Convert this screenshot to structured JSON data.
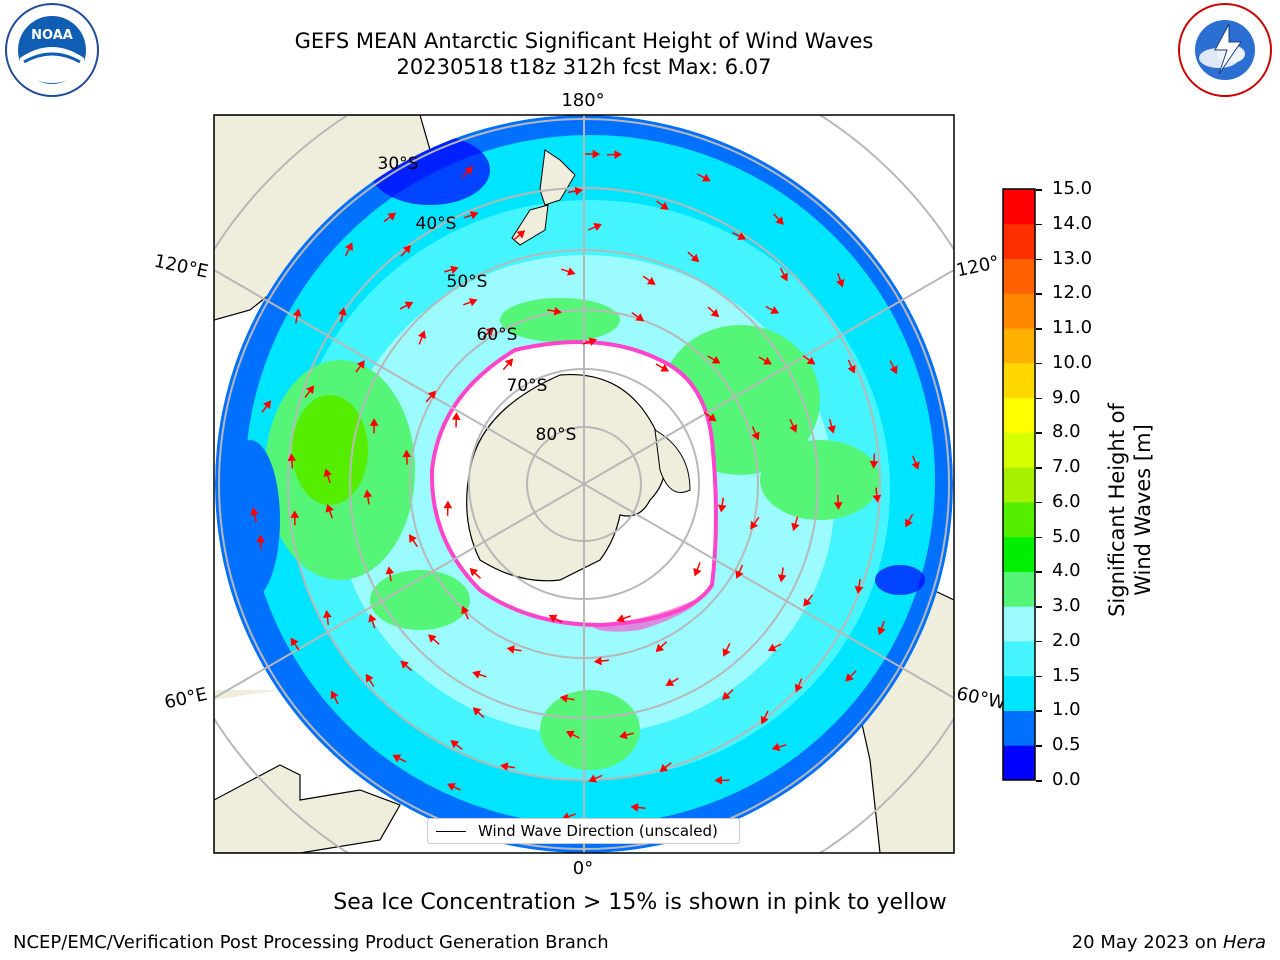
{
  "title": {
    "line1": "GEFS MEAN Antarctic Significant Height of Wind Waves",
    "line2": "20230518 t18z 312h fcst   Max: 6.07"
  },
  "logos": {
    "left": "NOAA",
    "left_ring_text": "NATIONAL OCEANIC AND ATMOSPHERIC ADMINISTRATION · U.S. DEPARTMENT OF COMMERCE",
    "right_ring_text": "NATIONAL WEATHER SERVICE"
  },
  "map": {
    "longitude_labels": {
      "top": "180°",
      "bottom": "0°",
      "left_upper": "120°E",
      "left_lower": "60°E",
      "right_upper": "120°",
      "right_lower": "60°W"
    },
    "latitude_labels": [
      "30°S",
      "40°S",
      "50°S",
      "60°S",
      "70°S",
      "80°S"
    ],
    "legend_label": "Wind Wave Direction (unscaled)"
  },
  "colorbar": {
    "label": "Significant Height of Wind Waves [m]",
    "ticks": [
      "15.0",
      "14.0",
      "13.0",
      "12.0",
      "11.0",
      "10.0",
      "9.0",
      "8.0",
      "7.0",
      "6.0",
      "5.0",
      "4.0",
      "3.0",
      "2.0",
      "1.5",
      "1.0",
      "0.5",
      "0.0"
    ],
    "colors": [
      "#0000ff",
      "#0070ff",
      "#00e5ff",
      "#44f5ff",
      "#9bfbff",
      "#55f578",
      "#00ee00",
      "#55ee00",
      "#a6f000",
      "#d6ff00",
      "#ffff00",
      "#ffd800",
      "#ffb000",
      "#ff8800",
      "#ff6000",
      "#ff3000",
      "#ff0000"
    ]
  },
  "footer": {
    "caption": "Sea Ice Concentration > 15% is shown in pink to yellow",
    "left": "NCEP/EMC/Verification Post Processing Product Generation Branch",
    "right_prefix": "20 May 2023 on ",
    "right_host": "Hera"
  }
}
